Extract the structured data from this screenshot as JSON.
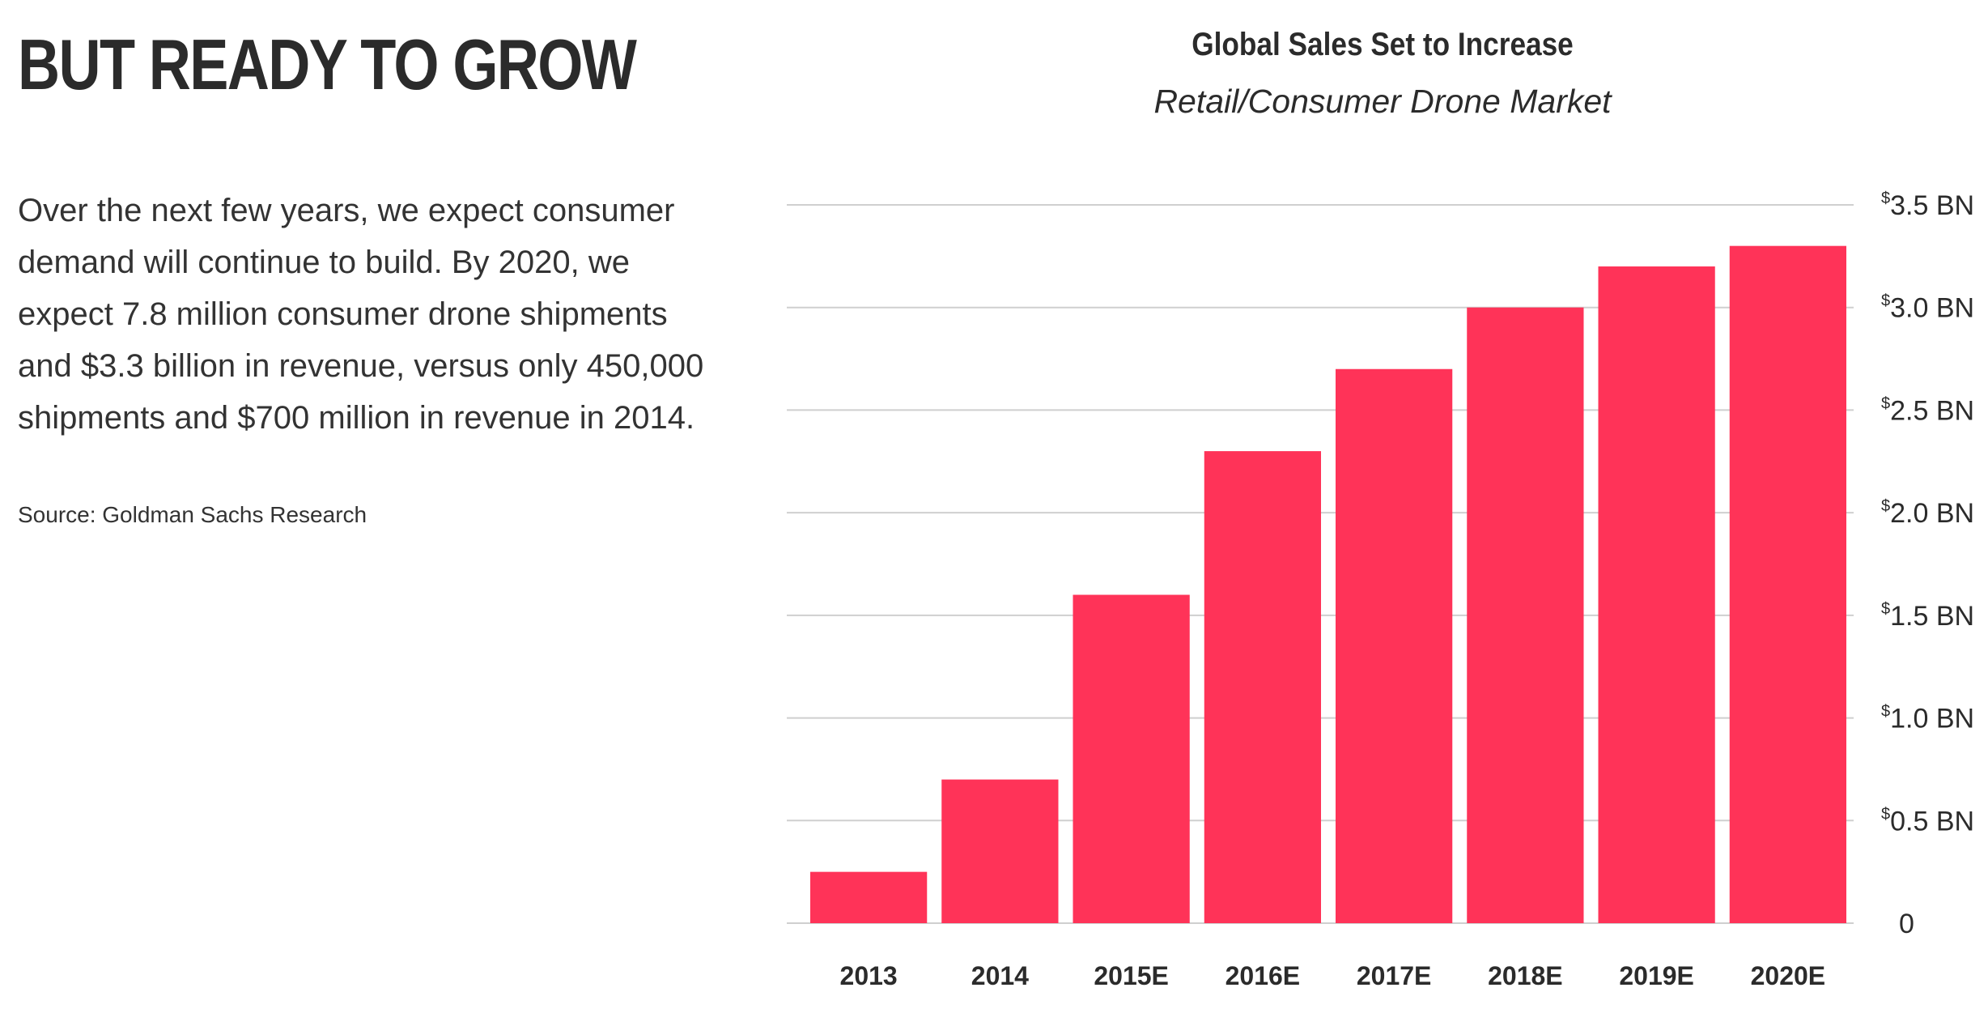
{
  "left_panel": {
    "headline": "BUT READY TO GROW",
    "body": "Over the next few years, we expect consumer demand will continue to build. By 2020, we expect 7.8 million consumer drone shipments and $3.3 billion in revenue, versus only 450,000 shipments and $700 million in revenue in 2014.",
    "source": "Source: Goldman Sachs Research"
  },
  "chart_data": {
    "type": "bar",
    "title": "Global Sales Set to Increase",
    "subtitle": "Retail/Consumer Drone Market",
    "categories": [
      "2013",
      "2014",
      "2015E",
      "2016E",
      "2017E",
      "2018E",
      "2019E",
      "2020E"
    ],
    "values": [
      0.25,
      0.7,
      1.6,
      2.3,
      2.7,
      3.0,
      3.2,
      3.3
    ],
    "ylim": [
      0,
      3.5
    ],
    "y_ticks": [
      {
        "value": 0,
        "currency": "",
        "label": "0"
      },
      {
        "value": 0.5,
        "currency": "$",
        "label": "0.5 BN"
      },
      {
        "value": 1.0,
        "currency": "$",
        "label": "1.0 BN"
      },
      {
        "value": 1.5,
        "currency": "$",
        "label": "1.5 BN"
      },
      {
        "value": 2.0,
        "currency": "$",
        "label": "2.0 BN"
      },
      {
        "value": 2.5,
        "currency": "$",
        "label": "2.5 BN"
      },
      {
        "value": 3.0,
        "currency": "$",
        "label": "3.0 BN"
      },
      {
        "value": 3.5,
        "currency": "$",
        "label": "3.5 BN"
      }
    ],
    "y_axis_side": "right",
    "grid": true,
    "bar_color": "#ff3358",
    "grid_color": "#cfcfcf"
  }
}
